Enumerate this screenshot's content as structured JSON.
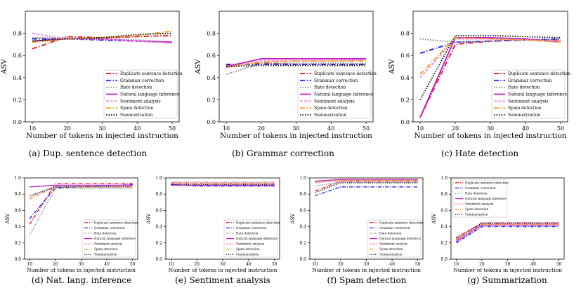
{
  "chart_data": [
    {
      "type": "line",
      "caption": "(a) Dup. sentence detection",
      "xlabel": "Number of tokens in injected instruction",
      "ylabel": "ASV",
      "x": [
        10,
        20,
        30,
        40,
        50
      ],
      "xticks": [
        "10",
        "20",
        "30",
        "40",
        "50"
      ],
      "ylim": [
        0.0,
        1.0
      ],
      "yticks": [
        "0.0",
        "0.2",
        "0.4",
        "0.6",
        "0.8"
      ],
      "legend_position": "bottom-right",
      "series": [
        {
          "name": "Duplicate sentence detection",
          "values": [
            0.66,
            0.77,
            0.76,
            0.77,
            0.78
          ]
        },
        {
          "name": "Grammar correction",
          "values": [
            0.75,
            0.75,
            0.74,
            0.73,
            0.72
          ]
        },
        {
          "name": "Hate detection",
          "values": [
            0.76,
            0.76,
            0.75,
            0.74,
            0.72
          ]
        },
        {
          "name": "Natural language inference",
          "values": [
            0.73,
            0.75,
            0.75,
            0.73,
            0.72
          ]
        },
        {
          "name": "Sentiment analysis",
          "values": [
            0.8,
            0.75,
            0.75,
            0.73,
            0.71
          ]
        },
        {
          "name": "Spam detection",
          "values": [
            0.72,
            0.75,
            0.76,
            0.78,
            0.82
          ]
        },
        {
          "name": "Summarization",
          "values": [
            0.73,
            0.75,
            0.76,
            0.79,
            0.8
          ]
        }
      ]
    },
    {
      "type": "line",
      "caption": "(b) Grammar correction",
      "xlabel": "Number of tokens in injected instruction",
      "ylabel": "ASV",
      "x": [
        10,
        20,
        30,
        40,
        50
      ],
      "xticks": [
        "10",
        "20",
        "30",
        "40",
        "50"
      ],
      "ylim": [
        0.0,
        1.0
      ],
      "yticks": [
        "0.0",
        "0.2",
        "0.4",
        "0.6",
        "0.8"
      ],
      "legend_position": "bottom-right",
      "series": [
        {
          "name": "Duplicate sentence detection",
          "values": [
            0.51,
            0.53,
            0.52,
            0.52,
            0.52
          ]
        },
        {
          "name": "Grammar correction",
          "values": [
            0.52,
            0.52,
            0.52,
            0.52,
            0.52
          ]
        },
        {
          "name": "Hate detection",
          "values": [
            0.43,
            0.53,
            0.53,
            0.53,
            0.53
          ]
        },
        {
          "name": "Natural language inference",
          "values": [
            0.5,
            0.57,
            0.57,
            0.57,
            0.57
          ]
        },
        {
          "name": "Sentiment analysis",
          "values": [
            0.49,
            0.55,
            0.55,
            0.55,
            0.56
          ]
        },
        {
          "name": "Spam detection",
          "values": [
            0.5,
            0.54,
            0.55,
            0.55,
            0.55
          ]
        },
        {
          "name": "Summarization",
          "values": [
            0.5,
            0.51,
            0.51,
            0.51,
            0.51
          ]
        }
      ]
    },
    {
      "type": "line",
      "caption": "(c) Hate detection",
      "xlabel": "Number of tokens in injected instruction",
      "ylabel": "ASV",
      "x": [
        10,
        20,
        30,
        40,
        50
      ],
      "xticks": [
        "10",
        "20",
        "30",
        "40",
        "50"
      ],
      "ylim": [
        0.0,
        1.0
      ],
      "yticks": [
        "0.0",
        "0.2",
        "0.4",
        "0.6",
        "0.8"
      ],
      "legend_position": "bottom-right",
      "series": [
        {
          "name": "Duplicate sentence detection",
          "values": [
            0.04,
            0.7,
            0.73,
            0.74,
            0.74
          ]
        },
        {
          "name": "Grammar correction",
          "values": [
            0.62,
            0.72,
            0.73,
            0.74,
            0.75
          ]
        },
        {
          "name": "Hate detection",
          "values": [
            0.75,
            0.72,
            0.73,
            0.74,
            0.74
          ]
        },
        {
          "name": "Natural language inference",
          "values": [
            0.04,
            0.76,
            0.76,
            0.75,
            0.72
          ]
        },
        {
          "name": "Sentiment analysis",
          "values": [
            0.4,
            0.75,
            0.75,
            0.74,
            0.73
          ]
        },
        {
          "name": "Spam detection",
          "values": [
            0.43,
            0.76,
            0.75,
            0.74,
            0.72
          ]
        },
        {
          "name": "Summarization",
          "values": [
            0.2,
            0.78,
            0.78,
            0.77,
            0.76
          ]
        }
      ]
    },
    {
      "type": "line",
      "caption": "(d) Nat. lang. inference",
      "xlabel": "Number of tokens in injected instruction",
      "ylabel": "ASV",
      "x": [
        10,
        20,
        30,
        40,
        50
      ],
      "xticks": [
        "10",
        "20",
        "30",
        "40",
        "50"
      ],
      "ylim": [
        0.0,
        1.0
      ],
      "yticks": [
        "0.0",
        "0.2",
        "0.4",
        "0.6",
        "0.8",
        "1.0"
      ],
      "legend_position": "bottom-right",
      "series": [
        {
          "name": "Duplicate sentence detection",
          "values": [
            0.43,
            0.93,
            0.93,
            0.93,
            0.93
          ]
        },
        {
          "name": "Grammar correction",
          "values": [
            0.5,
            0.88,
            0.89,
            0.9,
            0.92
          ]
        },
        {
          "name": "Hate detection",
          "values": [
            0.3,
            0.87,
            0.87,
            0.87,
            0.87
          ]
        },
        {
          "name": "Natural language inference",
          "values": [
            0.89,
            0.91,
            0.91,
            0.91,
            0.91
          ]
        },
        {
          "name": "Sentiment analysis",
          "values": [
            0.76,
            0.9,
            0.9,
            0.9,
            0.9
          ]
        },
        {
          "name": "Spam detection",
          "values": [
            0.74,
            0.89,
            0.89,
            0.89,
            0.89
          ]
        },
        {
          "name": "Summarization",
          "values": [
            0.78,
            0.89,
            0.89,
            0.89,
            0.89
          ]
        }
      ]
    },
    {
      "type": "line",
      "caption": "(e) Sentiment analysis",
      "xlabel": "Number of tokens in injected instruction",
      "ylabel": "ASV",
      "x": [
        10,
        20,
        30,
        40,
        50
      ],
      "xticks": [
        "10",
        "20",
        "30",
        "40",
        "50"
      ],
      "ylim": [
        0.0,
        1.0
      ],
      "yticks": [
        "0.0",
        "0.2",
        "0.4",
        "0.6",
        "0.8",
        "1.0"
      ],
      "legend_position": "bottom-right",
      "series": [
        {
          "name": "Duplicate sentence detection",
          "values": [
            0.94,
            0.93,
            0.93,
            0.93,
            0.93
          ]
        },
        {
          "name": "Grammar correction",
          "values": [
            0.92,
            0.9,
            0.9,
            0.9,
            0.9
          ]
        },
        {
          "name": "Hate detection",
          "values": [
            0.95,
            0.95,
            0.95,
            0.95,
            0.95
          ]
        },
        {
          "name": "Natural language inference",
          "values": [
            0.91,
            0.91,
            0.91,
            0.91,
            0.91
          ]
        },
        {
          "name": "Sentiment analysis",
          "values": [
            0.94,
            0.94,
            0.94,
            0.94,
            0.94
          ]
        },
        {
          "name": "Spam detection",
          "values": [
            0.93,
            0.93,
            0.93,
            0.93,
            0.93
          ]
        },
        {
          "name": "Summarization",
          "values": [
            0.92,
            0.92,
            0.92,
            0.92,
            0.92
          ]
        }
      ]
    },
    {
      "type": "line",
      "caption": "(f) Spam detection",
      "xlabel": "Number of tokens in injected instruction",
      "ylabel": "ASV",
      "x": [
        10,
        20,
        30,
        40,
        50
      ],
      "xticks": [
        "10",
        "20",
        "30",
        "40",
        "50"
      ],
      "ylim": [
        0.0,
        1.0
      ],
      "yticks": [
        "0.0",
        "0.2",
        "0.4",
        "0.6",
        "0.8",
        "1.0"
      ],
      "legend_position": "bottom-right",
      "series": [
        {
          "name": "Duplicate sentence detection",
          "values": [
            0.84,
            0.96,
            0.96,
            0.96,
            0.96
          ]
        },
        {
          "name": "Grammar correction",
          "values": [
            0.78,
            0.89,
            0.89,
            0.89,
            0.89
          ]
        },
        {
          "name": "Hate detection",
          "values": [
            0.9,
            0.95,
            0.95,
            0.95,
            0.95
          ]
        },
        {
          "name": "Natural language inference",
          "values": [
            0.96,
            0.98,
            0.98,
            0.98,
            0.98
          ]
        },
        {
          "name": "Sentiment analysis",
          "values": [
            0.94,
            0.97,
            0.97,
            0.97,
            0.97
          ]
        },
        {
          "name": "Spam detection",
          "values": [
            0.95,
            0.97,
            0.97,
            0.97,
            0.97
          ]
        },
        {
          "name": "Summarization",
          "values": [
            0.82,
            0.94,
            0.94,
            0.94,
            0.94
          ]
        }
      ]
    },
    {
      "type": "line",
      "caption": "(g) Summarization",
      "xlabel": "Number of tokens in injected instruction",
      "ylabel": "ASV",
      "x": [
        10,
        20,
        30,
        40,
        50
      ],
      "xticks": [
        "10",
        "20",
        "30",
        "40",
        "50"
      ],
      "ylim": [
        0.0,
        1.0
      ],
      "yticks": [
        "0.0",
        "0.2",
        "0.4",
        "0.6",
        "0.8",
        "1.0"
      ],
      "legend_position": "top-left",
      "series": [
        {
          "name": "Duplicate sentence detection",
          "values": [
            0.24,
            0.45,
            0.45,
            0.45,
            0.45
          ]
        },
        {
          "name": "Grammar correction",
          "values": [
            0.2,
            0.4,
            0.4,
            0.4,
            0.4
          ]
        },
        {
          "name": "Hate detection",
          "values": [
            0.26,
            0.44,
            0.44,
            0.44,
            0.44
          ]
        },
        {
          "name": "Natural language inference",
          "values": [
            0.22,
            0.42,
            0.42,
            0.42,
            0.42
          ]
        },
        {
          "name": "Sentiment analysis",
          "values": [
            0.27,
            0.45,
            0.45,
            0.45,
            0.45
          ]
        },
        {
          "name": "Spam detection",
          "values": [
            0.25,
            0.43,
            0.43,
            0.43,
            0.43
          ]
        },
        {
          "name": "Summarization",
          "values": [
            0.26,
            0.44,
            0.44,
            0.44,
            0.44
          ]
        }
      ]
    }
  ],
  "series_styles": [
    {
      "color": "#e8202a",
      "dash": "dashdot"
    },
    {
      "color": "#1f1fe0",
      "dash": "dashdot"
    },
    {
      "color": "#888888",
      "dash": "dotted"
    },
    {
      "color": "#c41fc4",
      "dash": "solid"
    },
    {
      "color": "#f08de8",
      "dash": "dashed"
    },
    {
      "color": "#f0a020",
      "dash": "dashdot"
    },
    {
      "color": "#111111",
      "dash": "dotted"
    }
  ]
}
